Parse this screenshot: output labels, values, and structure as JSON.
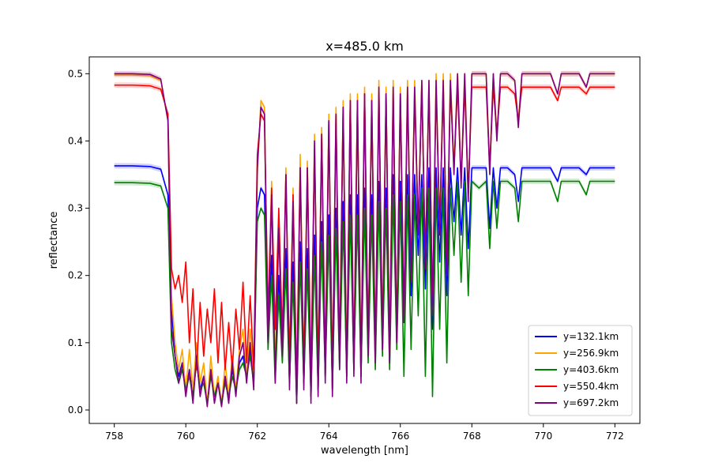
{
  "chart_data": {
    "type": "line",
    "title": "x=485.0 km",
    "xlabel": "wavelength [nm]",
    "ylabel": "reflectance",
    "xlim": [
      757.3,
      772.7
    ],
    "ylim": [
      -0.02,
      0.525
    ],
    "xticks": [
      758,
      760,
      762,
      764,
      766,
      768,
      770,
      772
    ],
    "yticks": [
      0.0,
      0.1,
      0.2,
      0.3,
      0.4,
      0.5
    ],
    "grid": false,
    "legend": {
      "placement": "lower-right"
    },
    "shaded_band": true,
    "x": [
      758.0,
      758.5,
      759.0,
      759.3,
      759.5,
      759.6,
      759.7,
      759.8,
      759.9,
      760.0,
      760.1,
      760.2,
      760.3,
      760.4,
      760.5,
      760.6,
      760.7,
      760.8,
      760.9,
      761.0,
      761.1,
      761.2,
      761.3,
      761.4,
      761.5,
      761.6,
      761.7,
      761.8,
      761.9,
      762.0,
      762.1,
      762.2,
      762.3,
      762.4,
      762.5,
      762.6,
      762.7,
      762.8,
      762.9,
      763.0,
      763.1,
      763.2,
      763.3,
      763.4,
      763.5,
      763.6,
      763.7,
      763.8,
      763.9,
      764.0,
      764.1,
      764.2,
      764.3,
      764.4,
      764.5,
      764.6,
      764.7,
      764.8,
      764.9,
      765.0,
      765.1,
      765.2,
      765.3,
      765.4,
      765.5,
      765.6,
      765.7,
      765.8,
      765.9,
      766.0,
      766.1,
      766.2,
      766.3,
      766.4,
      766.5,
      766.6,
      766.7,
      766.8,
      766.9,
      767.0,
      767.1,
      767.2,
      767.3,
      767.4,
      767.5,
      767.6,
      767.7,
      767.8,
      767.9,
      768.0,
      768.2,
      768.4,
      768.5,
      768.6,
      768.7,
      768.8,
      769.0,
      769.2,
      769.3,
      769.4,
      769.6,
      769.8,
      770.0,
      770.2,
      770.4,
      770.5,
      770.6,
      770.8,
      771.0,
      771.2,
      771.3,
      771.4,
      771.6,
      771.8,
      772.0
    ],
    "series": [
      {
        "name": "y=132.1km",
        "color": "#0000ff",
        "values": [
          0.363,
          0.363,
          0.362,
          0.358,
          0.32,
          0.15,
          0.08,
          0.05,
          0.07,
          0.03,
          0.06,
          0.02,
          0.08,
          0.03,
          0.05,
          0.01,
          0.06,
          0.02,
          0.04,
          0.01,
          0.05,
          0.02,
          0.06,
          0.03,
          0.07,
          0.08,
          0.05,
          0.09,
          0.04,
          0.3,
          0.33,
          0.32,
          0.1,
          0.23,
          0.05,
          0.2,
          0.08,
          0.24,
          0.04,
          0.22,
          0.01,
          0.25,
          0.04,
          0.24,
          0.02,
          0.26,
          0.03,
          0.28,
          0.05,
          0.29,
          0.03,
          0.3,
          0.07,
          0.31,
          0.05,
          0.32,
          0.06,
          0.32,
          0.05,
          0.33,
          0.08,
          0.32,
          0.07,
          0.34,
          0.09,
          0.33,
          0.07,
          0.35,
          0.1,
          0.34,
          0.13,
          0.35,
          0.17,
          0.35,
          0.23,
          0.35,
          0.18,
          0.36,
          0.12,
          0.36,
          0.22,
          0.36,
          0.17,
          0.36,
          0.28,
          0.36,
          0.26,
          0.36,
          0.24,
          0.36,
          0.36,
          0.36,
          0.27,
          0.36,
          0.3,
          0.36,
          0.36,
          0.35,
          0.31,
          0.36,
          0.36,
          0.36,
          0.36,
          0.36,
          0.34,
          0.36,
          0.36,
          0.36,
          0.36,
          0.35,
          0.36,
          0.36,
          0.36,
          0.36,
          0.36
        ]
      },
      {
        "name": "y=256.9km",
        "color": "#ffa500",
        "values": [
          0.498,
          0.498,
          0.497,
          0.49,
          0.43,
          0.17,
          0.1,
          0.06,
          0.09,
          0.03,
          0.09,
          0.03,
          0.1,
          0.04,
          0.07,
          0.01,
          0.08,
          0.02,
          0.05,
          0.01,
          0.07,
          0.02,
          0.08,
          0.03,
          0.09,
          0.12,
          0.05,
          0.12,
          0.05,
          0.35,
          0.46,
          0.45,
          0.12,
          0.34,
          0.05,
          0.29,
          0.1,
          0.36,
          0.04,
          0.33,
          0.01,
          0.38,
          0.04,
          0.37,
          0.02,
          0.41,
          0.03,
          0.42,
          0.05,
          0.44,
          0.03,
          0.45,
          0.07,
          0.46,
          0.05,
          0.47,
          0.06,
          0.47,
          0.05,
          0.48,
          0.09,
          0.47,
          0.08,
          0.49,
          0.1,
          0.48,
          0.08,
          0.49,
          0.11,
          0.48,
          0.14,
          0.49,
          0.2,
          0.49,
          0.27,
          0.49,
          0.22,
          0.49,
          0.15,
          0.5,
          0.27,
          0.5,
          0.21,
          0.5,
          0.36,
          0.5,
          0.34,
          0.5,
          0.32,
          0.5,
          0.5,
          0.5,
          0.36,
          0.5,
          0.41,
          0.5,
          0.5,
          0.49,
          0.43,
          0.5,
          0.5,
          0.5,
          0.5,
          0.5,
          0.47,
          0.5,
          0.5,
          0.5,
          0.5,
          0.48,
          0.5,
          0.5,
          0.5,
          0.5,
          0.5
        ]
      },
      {
        "name": "y=403.6km",
        "color": "#008000",
        "values": [
          0.338,
          0.338,
          0.337,
          0.333,
          0.3,
          0.1,
          0.06,
          0.04,
          0.06,
          0.03,
          0.05,
          0.02,
          0.07,
          0.03,
          0.04,
          0.01,
          0.05,
          0.02,
          0.04,
          0.01,
          0.04,
          0.02,
          0.05,
          0.03,
          0.06,
          0.07,
          0.05,
          0.08,
          0.04,
          0.28,
          0.3,
          0.29,
          0.09,
          0.2,
          0.04,
          0.17,
          0.07,
          0.21,
          0.04,
          0.19,
          0.01,
          0.22,
          0.04,
          0.21,
          0.02,
          0.23,
          0.03,
          0.25,
          0.05,
          0.26,
          0.03,
          0.27,
          0.06,
          0.28,
          0.05,
          0.29,
          0.06,
          0.29,
          0.05,
          0.3,
          0.07,
          0.29,
          0.06,
          0.31,
          0.08,
          0.3,
          0.06,
          0.32,
          0.09,
          0.31,
          0.05,
          0.32,
          0.09,
          0.32,
          0.14,
          0.33,
          0.05,
          0.33,
          0.02,
          0.33,
          0.12,
          0.33,
          0.07,
          0.33,
          0.23,
          0.34,
          0.19,
          0.34,
          0.17,
          0.34,
          0.33,
          0.34,
          0.24,
          0.34,
          0.27,
          0.34,
          0.34,
          0.33,
          0.28,
          0.34,
          0.34,
          0.34,
          0.34,
          0.34,
          0.31,
          0.34,
          0.34,
          0.34,
          0.34,
          0.32,
          0.34,
          0.34,
          0.34,
          0.34,
          0.34
        ]
      },
      {
        "name": "y=550.4km",
        "color": "#ff0000",
        "values": [
          0.483,
          0.483,
          0.482,
          0.477,
          0.44,
          0.21,
          0.18,
          0.2,
          0.16,
          0.22,
          0.1,
          0.18,
          0.06,
          0.16,
          0.08,
          0.15,
          0.1,
          0.18,
          0.07,
          0.16,
          0.06,
          0.13,
          0.06,
          0.15,
          0.09,
          0.19,
          0.07,
          0.17,
          0.06,
          0.38,
          0.44,
          0.43,
          0.14,
          0.33,
          0.12,
          0.3,
          0.11,
          0.35,
          0.07,
          0.32,
          0.04,
          0.36,
          0.06,
          0.36,
          0.05,
          0.39,
          0.06,
          0.41,
          0.07,
          0.43,
          0.05,
          0.44,
          0.08,
          0.45,
          0.06,
          0.46,
          0.07,
          0.46,
          0.06,
          0.47,
          0.09,
          0.46,
          0.08,
          0.47,
          0.1,
          0.47,
          0.08,
          0.47,
          0.11,
          0.47,
          0.14,
          0.47,
          0.2,
          0.47,
          0.27,
          0.48,
          0.22,
          0.48,
          0.15,
          0.48,
          0.27,
          0.48,
          0.21,
          0.48,
          0.36,
          0.48,
          0.34,
          0.48,
          0.32,
          0.48,
          0.48,
          0.48,
          0.36,
          0.48,
          0.41,
          0.48,
          0.48,
          0.47,
          0.43,
          0.48,
          0.48,
          0.48,
          0.48,
          0.48,
          0.46,
          0.48,
          0.48,
          0.48,
          0.48,
          0.47,
          0.48,
          0.48,
          0.48,
          0.48,
          0.48
        ]
      },
      {
        "name": "y=697.2km",
        "color": "#800080",
        "values": [
          0.5,
          0.5,
          0.499,
          0.492,
          0.43,
          0.12,
          0.08,
          0.04,
          0.07,
          0.02,
          0.06,
          0.01,
          0.08,
          0.02,
          0.05,
          0.005,
          0.06,
          0.01,
          0.04,
          0.005,
          0.05,
          0.01,
          0.07,
          0.02,
          0.08,
          0.1,
          0.04,
          0.1,
          0.03,
          0.36,
          0.45,
          0.44,
          0.1,
          0.32,
          0.04,
          0.27,
          0.08,
          0.35,
          0.03,
          0.31,
          0.01,
          0.36,
          0.03,
          0.36,
          0.01,
          0.4,
          0.02,
          0.41,
          0.04,
          0.43,
          0.02,
          0.44,
          0.06,
          0.45,
          0.04,
          0.46,
          0.05,
          0.46,
          0.04,
          0.47,
          0.08,
          0.46,
          0.07,
          0.48,
          0.09,
          0.47,
          0.07,
          0.48,
          0.1,
          0.47,
          0.13,
          0.48,
          0.19,
          0.48,
          0.26,
          0.49,
          0.21,
          0.49,
          0.14,
          0.49,
          0.26,
          0.49,
          0.2,
          0.49,
          0.35,
          0.5,
          0.33,
          0.5,
          0.31,
          0.5,
          0.5,
          0.5,
          0.35,
          0.5,
          0.4,
          0.5,
          0.5,
          0.49,
          0.42,
          0.5,
          0.5,
          0.5,
          0.5,
          0.5,
          0.47,
          0.5,
          0.5,
          0.5,
          0.5,
          0.48,
          0.5,
          0.5,
          0.5,
          0.5,
          0.5
        ]
      }
    ]
  }
}
